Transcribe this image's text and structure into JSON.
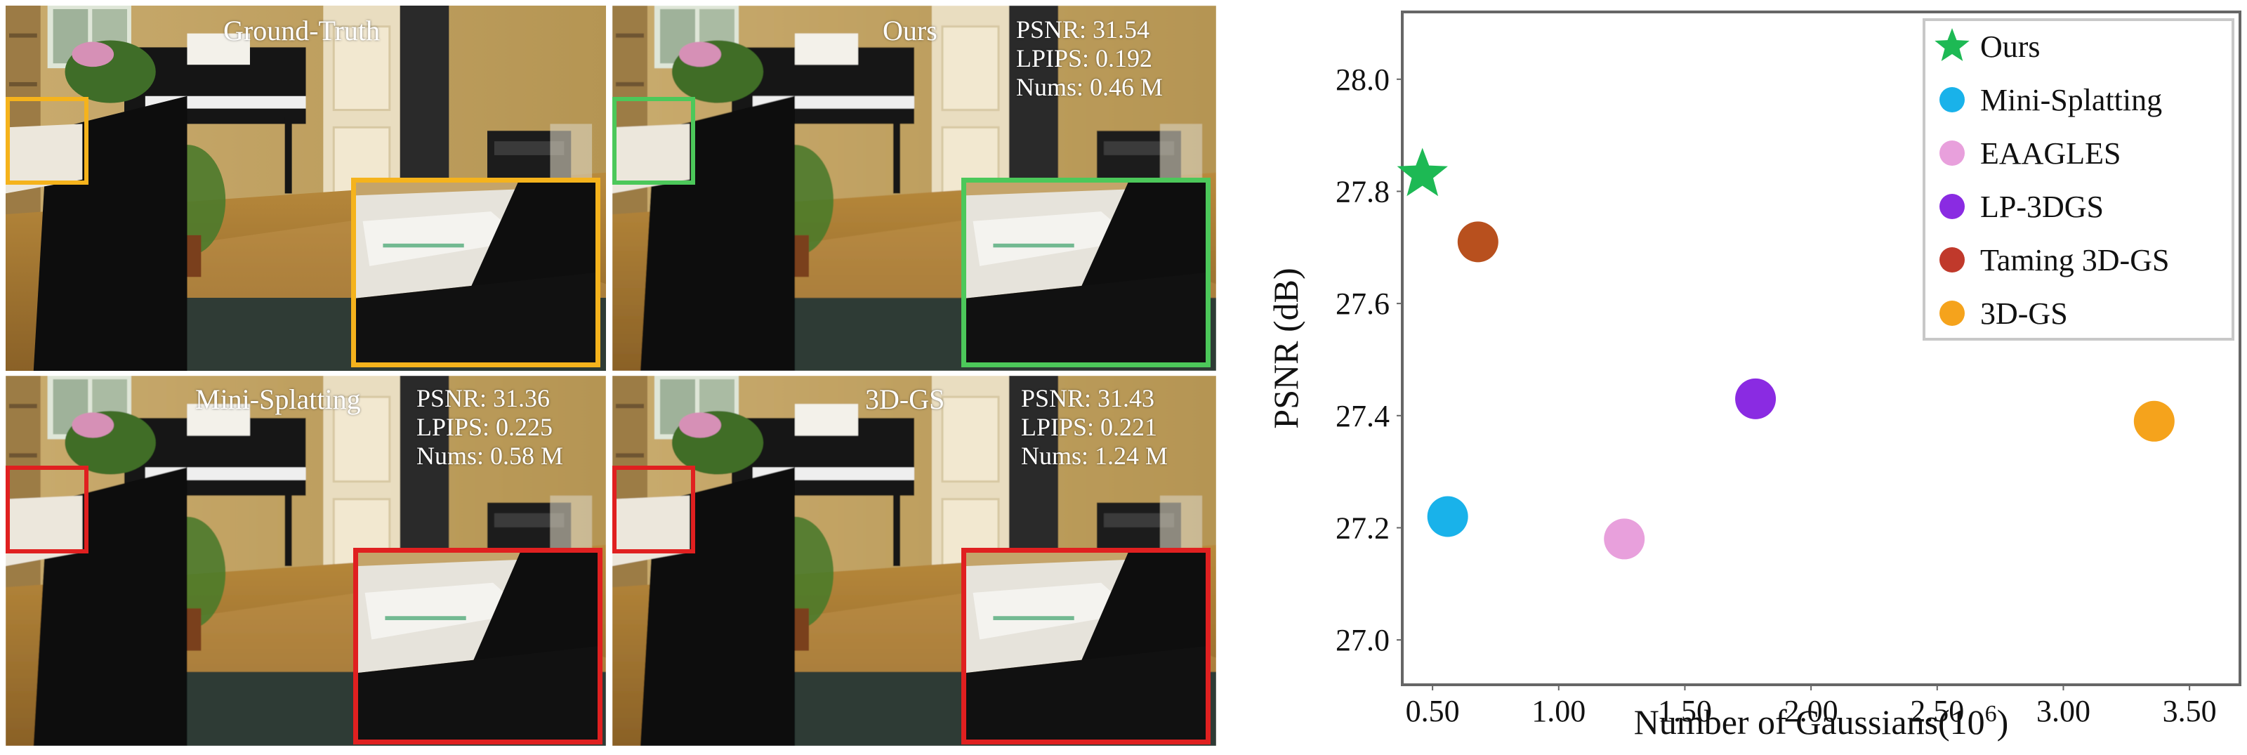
{
  "panels": [
    {
      "title": "Ground-Truth",
      "psnr": "",
      "lpips": "",
      "nums": "",
      "box_color": "#f5b31c"
    },
    {
      "title": "Ours",
      "psnr": "PSNR: 31.54",
      "lpips": "LPIPS: 0.192",
      "nums": "Nums: 0.46 M",
      "box_color": "#4cc85a"
    },
    {
      "title": "Mini-Splatting",
      "psnr": "PSNR: 31.36",
      "lpips": "LPIPS: 0.225",
      "nums": "Nums: 0.58 M",
      "box_color": "#e02020"
    },
    {
      "title": "3D-GS",
      "psnr": "PSNR: 31.43",
      "lpips": "LPIPS: 0.221",
      "nums": "Nums: 1.24 M",
      "box_color": "#e02020"
    }
  ],
  "chart_data": {
    "type": "scatter",
    "title": "",
    "xlabel": "Number of Gaussians(10",
    "xlabel_exp": "6",
    "xlabel_close": ")",
    "ylabel": "PSNR (dB)",
    "xlim": [
      0.38,
      3.7
    ],
    "ylim": [
      26.92,
      28.12
    ],
    "xticks": [
      0.5,
      1.0,
      1.5,
      2.0,
      2.5,
      3.0,
      3.5
    ],
    "xtick_labels": [
      "0.50",
      "1.00",
      "1.50",
      "2.00",
      "2.50",
      "3.00",
      "3.50"
    ],
    "yticks": [
      27.0,
      27.2,
      27.4,
      27.6,
      27.8,
      28.0
    ],
    "ytick_labels": [
      "27.0",
      "27.2",
      "27.4",
      "27.6",
      "27.8",
      "28.0"
    ],
    "grid": false,
    "legend_position": "top-right",
    "series": [
      {
        "name": "Ours",
        "x": 0.46,
        "y": 27.83,
        "color": "#1db954",
        "marker": "star"
      },
      {
        "name": "Mini-Splatting",
        "x": 0.56,
        "y": 27.22,
        "color": "#19b2ea",
        "marker": "circle"
      },
      {
        "name": "EAAGLES",
        "x": 1.26,
        "y": 27.18,
        "color": "#e8a0dc",
        "marker": "circle"
      },
      {
        "name": "LP-3DGS",
        "x": 1.78,
        "y": 27.43,
        "color": "#8a2be2",
        "marker": "circle"
      },
      {
        "name": "Taming 3D-GS",
        "x": 0.68,
        "y": 27.71,
        "color": "#c0392b",
        "marker": "circle"
      },
      {
        "name": "3D-GS",
        "x": 3.36,
        "y": 27.39,
        "color": "#f5a31c",
        "marker": "circle"
      }
    ],
    "extra_points": [
      {
        "x": 0.68,
        "y": 27.71,
        "color": "#b8501e"
      }
    ]
  }
}
